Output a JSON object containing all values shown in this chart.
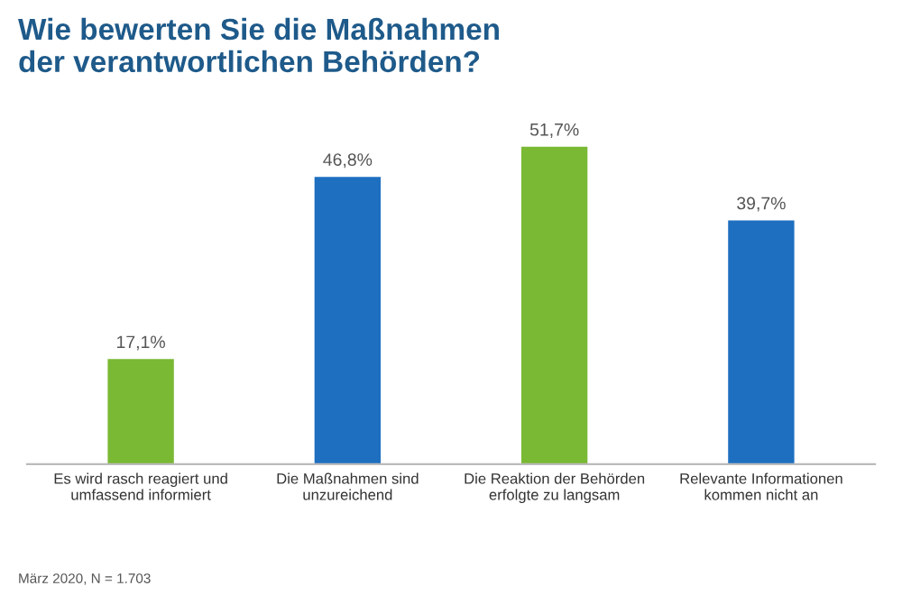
{
  "chart_data": {
    "type": "bar",
    "title": "Wie bewerten Sie die Maßnahmen\nder verantwortlichen Behörden?",
    "categories": [
      "Es wird rasch reagiert und\numfassend informiert",
      "Die Maßnahmen sind\nunzureichend",
      "Die Reaktion der Behörden\nerfolgte zu langsam",
      "Relevante Informationen\nkommen nicht an"
    ],
    "values": [
      17.1,
      46.8,
      51.7,
      39.7
    ],
    "colors": [
      "#7ab934",
      "#1e6fc0",
      "#7ab934",
      "#1e6fc0"
    ],
    "value_labels": [
      "17,1%",
      "46,8%",
      "51,7%",
      "39,7%"
    ],
    "annotations": [
      "März 2020, N = 1.703"
    ],
    "grid": false,
    "legend": false
  }
}
